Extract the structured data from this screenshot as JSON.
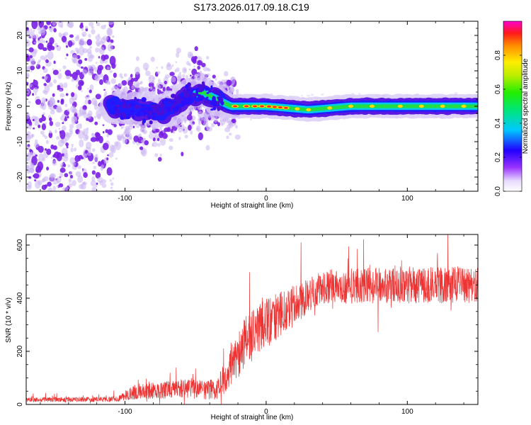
{
  "title": "S173.2026.017.09.18.C19",
  "colors": {
    "snr_line": "#ee3333",
    "scatter_purple": "#7a1fe6",
    "scatter_light": "#cbb4f2"
  },
  "chart_data": [
    {
      "type": "heatmap",
      "name": "spectrogram",
      "xlabel": "Height of straight line (km)",
      "ylabel": "Frequency (Hz)",
      "xlim": [
        -170,
        150
      ],
      "ylim": [
        -24,
        24
      ],
      "xticks": [
        -100,
        0,
        100
      ],
      "xtick_labels": [
        "-100",
        "0",
        "100"
      ],
      "yticks": [
        -20,
        -10,
        0,
        10,
        20
      ],
      "ytick_labels": [
        "-20",
        "-10",
        "0",
        "10",
        "20"
      ],
      "band_center_trace": [
        {
          "x": -110,
          "y": 0
        },
        {
          "x": -90,
          "y": -1
        },
        {
          "x": -75,
          "y": -2
        },
        {
          "x": -65,
          "y": 0
        },
        {
          "x": -55,
          "y": 3
        },
        {
          "x": -45,
          "y": 4
        },
        {
          "x": -35,
          "y": 2
        },
        {
          "x": -25,
          "y": 0
        },
        {
          "x": 0,
          "y": 0
        },
        {
          "x": 30,
          "y": -1
        },
        {
          "x": 60,
          "y": 0
        },
        {
          "x": 150,
          "y": 0
        }
      ],
      "band_halfwidth_hz": 1.5,
      "colorbar": {
        "label": "Normalized spectral amplitude",
        "range": [
          0.0,
          1.0
        ],
        "ticks": [
          0.0,
          0.2,
          0.4,
          0.6,
          0.8
        ],
        "tick_labels": [
          "0.0",
          "0.2",
          "0.4",
          "0.6",
          "0.8"
        ]
      }
    },
    {
      "type": "line",
      "name": "snr",
      "xlabel": "Height of straight line (km)",
      "ylabel": "SNR (10 * v/v)",
      "xlim": [
        -170,
        150
      ],
      "ylim": [
        0,
        640
      ],
      "xticks": [
        -100,
        0,
        100
      ],
      "xtick_labels": [
        "-100",
        "0",
        "100"
      ],
      "yticks": [
        0,
        200,
        400,
        600
      ],
      "ytick_labels": [
        "0",
        "200",
        "400",
        "600"
      ],
      "envelope": [
        {
          "x": -170,
          "mean": 18,
          "spread": 12
        },
        {
          "x": -105,
          "mean": 20,
          "spread": 15
        },
        {
          "x": -95,
          "mean": 45,
          "spread": 40
        },
        {
          "x": -60,
          "mean": 60,
          "spread": 50
        },
        {
          "x": -35,
          "mean": 55,
          "spread": 55
        },
        {
          "x": -28,
          "mean": 110,
          "spread": 100
        },
        {
          "x": -15,
          "mean": 240,
          "spread": 140
        },
        {
          "x": 0,
          "mean": 300,
          "spread": 140
        },
        {
          "x": 20,
          "mean": 380,
          "spread": 100
        },
        {
          "x": 40,
          "mean": 440,
          "spread": 90
        },
        {
          "x": 80,
          "mean": 450,
          "spread": 100
        },
        {
          "x": 150,
          "mean": 450,
          "spread": 100
        }
      ]
    }
  ]
}
